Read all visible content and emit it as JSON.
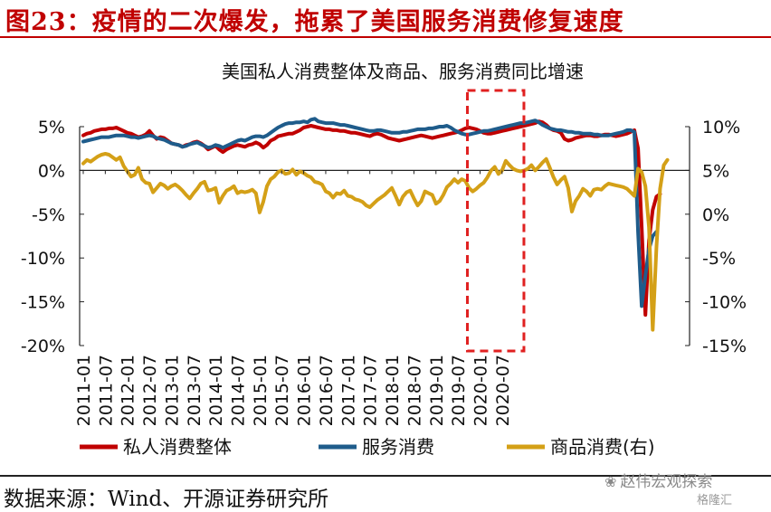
{
  "figure": {
    "title": "图23：疫情的二次爆发，拖累了美国服务消费修复速度",
    "source": "数据来源：Wind、开源证券研究所",
    "watermark": "赵伟宏观探索",
    "watermark_sub": "格隆汇"
  },
  "colors": {
    "title_red": "#c00000",
    "total": "#c00000",
    "services": "#1f5c8b",
    "goods": "#d4a017",
    "highlight_box": "#e02020"
  },
  "chart_data": {
    "type": "line",
    "title": "美国私人消费整体及商品、服务消费同比增速",
    "x_start": "2011-01",
    "x_step_months": 1,
    "x_ticks": [
      "2011-01",
      "2011-07",
      "2012-01",
      "2012-07",
      "2013-01",
      "2013-07",
      "2014-01",
      "2014-07",
      "2015-01",
      "2015-07",
      "2016-01",
      "2016-07",
      "2017-01",
      "2017-07",
      "2018-01",
      "2018-07",
      "2019-01",
      "2019-07",
      "2020-01",
      "2020-07"
    ],
    "y_left": {
      "min": -20,
      "max": 5,
      "ticks": [
        5,
        0,
        -5,
        -10,
        -15,
        -20
      ],
      "tick_labels": [
        "5%",
        "0%",
        "-5%",
        "-10%",
        "-15%",
        "-20%"
      ]
    },
    "y_right": {
      "min": -15,
      "max": 10,
      "ticks": [
        10,
        5,
        0,
        -5,
        -10,
        -15
      ],
      "tick_labels": [
        "10%",
        "5%",
        "0%",
        "-5%",
        "-10%",
        "-15%"
      ]
    },
    "highlight_period": [
      "2020-01",
      "2020-09"
    ],
    "series": [
      {
        "name": "私人消费整体",
        "axis": "left",
        "color": "#c00000",
        "values": [
          4.0,
          4.2,
          4.3,
          4.5,
          4.6,
          4.7,
          4.7,
          4.8,
          4.8,
          4.9,
          4.7,
          4.5,
          4.3,
          4.2,
          4.0,
          3.8,
          3.9,
          4.1,
          4.5,
          4.0,
          3.6,
          3.8,
          3.7,
          3.4,
          3.1,
          3.0,
          2.9,
          2.7,
          2.9,
          3.0,
          3.2,
          3.3,
          3.1,
          2.8,
          2.4,
          2.6,
          2.8,
          2.4,
          2.1,
          2.4,
          2.6,
          2.8,
          2.9,
          2.8,
          2.7,
          2.9,
          3.0,
          3.2,
          3.0,
          2.6,
          2.9,
          3.4,
          3.6,
          3.9,
          4.0,
          4.1,
          4.2,
          4.2,
          4.4,
          4.6,
          4.9,
          5.0,
          5.1,
          5.0,
          4.9,
          4.8,
          4.7,
          4.7,
          4.6,
          4.6,
          4.5,
          4.5,
          4.4,
          4.3,
          4.3,
          4.2,
          4.1,
          4.0,
          3.9,
          4.1,
          4.2,
          4.1,
          3.9,
          3.7,
          3.6,
          3.5,
          3.4,
          3.5,
          3.6,
          3.7,
          3.8,
          3.9,
          4.0,
          3.9,
          3.8,
          3.7,
          3.8,
          3.9,
          4.0,
          4.1,
          4.2,
          4.3,
          4.4,
          4.6,
          4.8,
          4.9,
          4.8,
          4.7,
          4.5,
          4.3,
          4.2,
          4.2,
          4.3,
          4.4,
          4.5,
          4.6,
          4.7,
          4.8,
          4.9,
          5.0,
          5.1,
          5.2,
          5.3,
          5.4,
          5.6,
          5.5,
          5.2,
          4.8,
          4.6,
          4.5,
          4.3,
          3.6,
          3.4,
          3.5,
          3.7,
          3.8,
          3.9,
          4.0,
          4.0,
          3.9,
          3.9,
          4.0,
          4.1,
          4.1,
          4.0,
          3.9,
          4.0,
          4.1,
          4.2,
          4.4,
          4.6,
          2.5,
          -6.5,
          -16.5,
          -8.0,
          -4.5,
          -3.0,
          -2.7
        ]
      },
      {
        "name": "服务消费",
        "axis": "left",
        "color": "#1f5c8b",
        "values": [
          3.3,
          3.4,
          3.5,
          3.6,
          3.7,
          3.8,
          3.8,
          3.8,
          3.9,
          4.0,
          4.0,
          4.0,
          3.9,
          3.8,
          3.8,
          3.7,
          3.8,
          3.9,
          4.0,
          3.9,
          3.7,
          3.6,
          3.5,
          3.3,
          3.1,
          3.0,
          2.9,
          2.7,
          2.8,
          3.0,
          3.1,
          3.2,
          3.0,
          2.8,
          2.6,
          2.7,
          2.9,
          2.8,
          2.6,
          2.8,
          3.0,
          3.2,
          3.4,
          3.5,
          3.4,
          3.6,
          3.8,
          3.9,
          3.9,
          3.8,
          4.0,
          4.3,
          4.6,
          4.9,
          5.1,
          5.3,
          5.4,
          5.4,
          5.5,
          5.5,
          5.6,
          5.5,
          5.8,
          5.9,
          5.6,
          5.5,
          5.4,
          5.4,
          5.4,
          5.3,
          5.2,
          5.2,
          5.1,
          5.0,
          4.9,
          4.8,
          4.7,
          4.6,
          4.5,
          4.5,
          4.6,
          4.6,
          4.5,
          4.4,
          4.3,
          4.3,
          4.3,
          4.4,
          4.4,
          4.5,
          4.6,
          4.7,
          4.7,
          4.7,
          4.8,
          4.8,
          4.9,
          5.0,
          5.0,
          5.1,
          4.9,
          4.6,
          4.4,
          4.2,
          4.1,
          4.1,
          4.2,
          4.3,
          4.4,
          4.5,
          4.5,
          4.6,
          4.7,
          4.8,
          4.9,
          5.0,
          5.1,
          5.2,
          5.3,
          5.4,
          5.4,
          5.5,
          5.6,
          5.7,
          5.5,
          5.2,
          5.0,
          4.8,
          4.7,
          4.6,
          4.6,
          4.5,
          4.4,
          4.4,
          4.3,
          4.3,
          4.2,
          4.2,
          4.2,
          4.1,
          4.1,
          4.0,
          4.0,
          4.0,
          4.1,
          4.2,
          4.3,
          4.4,
          4.6,
          4.6,
          4.4,
          -7.0,
          -15.5,
          -12.0,
          -9.0,
          -7.5,
          -7.0
        ]
      },
      {
        "name": "商品消费(右)",
        "axis": "right",
        "color": "#d4a017",
        "values": [
          5.8,
          6.2,
          6.0,
          6.3,
          6.6,
          6.8,
          6.9,
          6.8,
          6.5,
          6.2,
          6.5,
          5.5,
          4.9,
          4.3,
          4.5,
          5.3,
          4.0,
          3.6,
          3.5,
          2.5,
          3.0,
          3.5,
          3.3,
          2.9,
          3.2,
          3.4,
          3.1,
          2.7,
          2.2,
          1.8,
          2.4,
          2.9,
          3.5,
          3.7,
          2.7,
          2.8,
          3.0,
          1.3,
          2.1,
          2.7,
          2.9,
          3.2,
          2.4,
          2.6,
          2.5,
          2.6,
          2.8,
          2.4,
          0.2,
          1.4,
          3.2,
          4.0,
          4.3,
          4.8,
          5.0,
          4.6,
          4.7,
          5.1,
          4.5,
          4.9,
          4.7,
          4.4,
          4.2,
          3.7,
          3.6,
          3.4,
          2.6,
          2.4,
          1.9,
          2.4,
          2.3,
          2.7,
          2.1,
          2.0,
          1.7,
          1.6,
          1.4,
          1.0,
          0.8,
          1.2,
          1.6,
          1.9,
          2.2,
          2.6,
          3.0,
          2.1,
          1.1,
          2.0,
          2.5,
          2.7,
          1.8,
          1.0,
          1.5,
          2.6,
          2.4,
          2.2,
          1.2,
          1.5,
          2.2,
          3.1,
          3.5,
          4.0,
          3.6,
          4.0,
          3.8,
          3.0,
          2.6,
          2.9,
          3.3,
          3.6,
          4.2,
          5.0,
          5.4,
          4.6,
          5.0,
          6.1,
          5.6,
          5.2,
          5.0,
          4.9,
          5.0,
          5.2,
          5.6,
          5.0,
          5.4,
          5.9,
          6.3,
          5.3,
          4.2,
          3.4,
          3.9,
          4.3,
          3.0,
          0.3,
          1.5,
          2.1,
          2.9,
          2.6,
          2.1,
          2.8,
          2.9,
          2.8,
          3.2,
          3.5,
          3.4,
          3.3,
          3.2,
          3.1,
          2.9,
          2.5,
          2.1,
          5.2,
          4.8,
          3.2,
          -1.5,
          -13.2,
          -3.8,
          2.9,
          5.6,
          6.2
        ]
      }
    ],
    "legend": {
      "position": "bottom",
      "entries": [
        "私人消费整体",
        "服务消费",
        "商品消费(右)"
      ]
    }
  }
}
